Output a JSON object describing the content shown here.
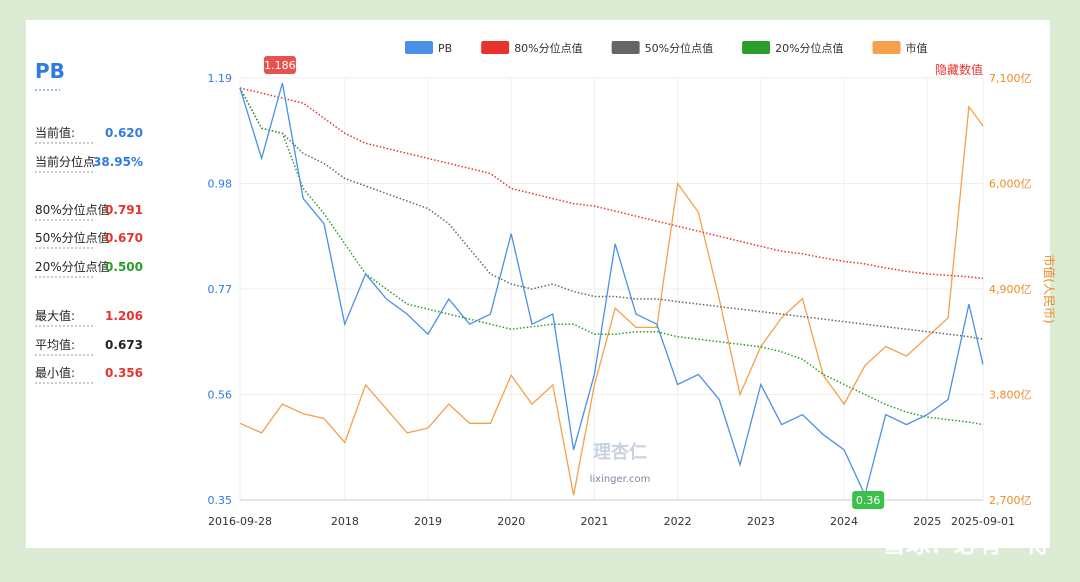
{
  "panel": {
    "title": "PB",
    "stats": [
      {
        "label": "当前值:",
        "value": "0.620"
      },
      {
        "label": "当前分位点",
        "value": "38.95%"
      },
      {
        "label": "80%分位点值",
        "value": "0.791"
      },
      {
        "label": "50%分位点值",
        "value": "0.670"
      },
      {
        "label": "20%分位点值",
        "value": "0.500"
      },
      {
        "label": "最大值:",
        "value": "1.206"
      },
      {
        "label": "平均值:",
        "value": "0.673"
      },
      {
        "label": "最小值:",
        "value": "0.356"
      }
    ]
  },
  "footer": "雪球：必有一得",
  "chart_data": {
    "type": "line",
    "hide_button": "隐藏数值",
    "y2_label": "市值(人民币)",
    "watermark": "理杏仁",
    "watermark_sub": "lixinger.com",
    "x": [
      2016.74,
      2017,
      2017.25,
      2017.5,
      2017.75,
      2018,
      2018.25,
      2018.5,
      2018.75,
      2019,
      2019.25,
      2019.5,
      2019.75,
      2020,
      2020.25,
      2020.5,
      2020.75,
      2021,
      2021.25,
      2021.5,
      2021.75,
      2022,
      2022.25,
      2022.5,
      2022.75,
      2023,
      2023.25,
      2023.5,
      2023.75,
      2024,
      2024.25,
      2024.5,
      2024.75,
      2025,
      2025.25,
      2025.5,
      2025.67
    ],
    "xlim": [
      2016.74,
      2025.67
    ],
    "xticks": [
      {
        "value": 2016.74,
        "label": "2016-09-28"
      },
      2018,
      2019,
      2020,
      2021,
      2022,
      2023,
      2024,
      2025,
      {
        "value": 2025.67,
        "label": "2025-09-01"
      }
    ],
    "ylim": [
      0.35,
      1.19
    ],
    "yticks": [
      0.35,
      0.56,
      0.77,
      0.98,
      1.19
    ],
    "y2lim": [
      2700,
      7100
    ],
    "y2ticks": [
      {
        "value": 2700,
        "label": "2,700亿"
      },
      {
        "value": 3800,
        "label": "3,800亿"
      },
      {
        "value": 4900,
        "label": "4,900亿"
      },
      {
        "value": 6000,
        "label": "6,000亿"
      },
      {
        "value": 7100,
        "label": "7,100亿"
      }
    ],
    "grid": true,
    "series": [
      {
        "name": "PB",
        "color": "#4a90e8",
        "style": "solid",
        "values": [
          1.17,
          1.03,
          1.18,
          0.95,
          0.9,
          0.7,
          0.8,
          0.75,
          0.72,
          0.68,
          0.75,
          0.7,
          0.72,
          0.88,
          0.7,
          0.72,
          0.45,
          0.6,
          0.86,
          0.72,
          0.7,
          0.58,
          0.6,
          0.55,
          0.42,
          0.58,
          0.5,
          0.52,
          0.48,
          0.45,
          0.36,
          0.52,
          0.5,
          0.52,
          0.55,
          0.74,
          0.62
        ]
      },
      {
        "name": "80%分位点值",
        "color": "#e8322e",
        "style": "dotted",
        "values": [
          1.17,
          1.16,
          1.15,
          1.14,
          1.11,
          1.08,
          1.06,
          1.05,
          1.04,
          1.03,
          1.02,
          1.01,
          1.0,
          0.97,
          0.96,
          0.95,
          0.94,
          0.935,
          0.925,
          0.915,
          0.905,
          0.895,
          0.885,
          0.875,
          0.865,
          0.855,
          0.845,
          0.84,
          0.832,
          0.825,
          0.82,
          0.812,
          0.805,
          0.8,
          0.797,
          0.794,
          0.791
        ]
      },
      {
        "name": "50%分位点值",
        "color": "#666666",
        "style": "dotted",
        "values": [
          1.17,
          1.09,
          1.08,
          1.04,
          1.02,
          0.99,
          0.975,
          0.96,
          0.945,
          0.93,
          0.9,
          0.85,
          0.8,
          0.78,
          0.77,
          0.78,
          0.765,
          0.755,
          0.755,
          0.75,
          0.75,
          0.745,
          0.74,
          0.735,
          0.73,
          0.725,
          0.72,
          0.715,
          0.71,
          0.705,
          0.7,
          0.695,
          0.69,
          0.685,
          0.68,
          0.675,
          0.67
        ]
      },
      {
        "name": "20%分位点值",
        "color": "#2a9d2a",
        "style": "dotted",
        "values": [
          1.17,
          1.09,
          1.08,
          0.97,
          0.92,
          0.86,
          0.8,
          0.77,
          0.74,
          0.73,
          0.72,
          0.71,
          0.7,
          0.69,
          0.695,
          0.7,
          0.7,
          0.68,
          0.68,
          0.685,
          0.685,
          0.675,
          0.67,
          0.665,
          0.66,
          0.655,
          0.645,
          0.63,
          0.6,
          0.58,
          0.56,
          0.54,
          0.525,
          0.515,
          0.51,
          0.505,
          0.5
        ]
      },
      {
        "name": "市值",
        "color": "#f5a04a",
        "style": "solid",
        "axis": "y2",
        "values": [
          3500,
          3400,
          3700,
          3600,
          3550,
          3300,
          3900,
          3650,
          3400,
          3450,
          3700,
          3500,
          3500,
          4000,
          3700,
          3900,
          2750,
          3900,
          4700,
          4500,
          4500,
          6000,
          5700,
          4800,
          3800,
          4300,
          4600,
          4800,
          4000,
          3700,
          4100,
          4300,
          4200,
          4400,
          4600,
          6800,
          6600
        ]
      }
    ],
    "annotations": [
      {
        "x": 2017.22,
        "y": 1.186,
        "color": "#e8524e"
      },
      {
        "x": 2024.29,
        "y": 0.36,
        "color": "#3cc04a"
      }
    ]
  }
}
